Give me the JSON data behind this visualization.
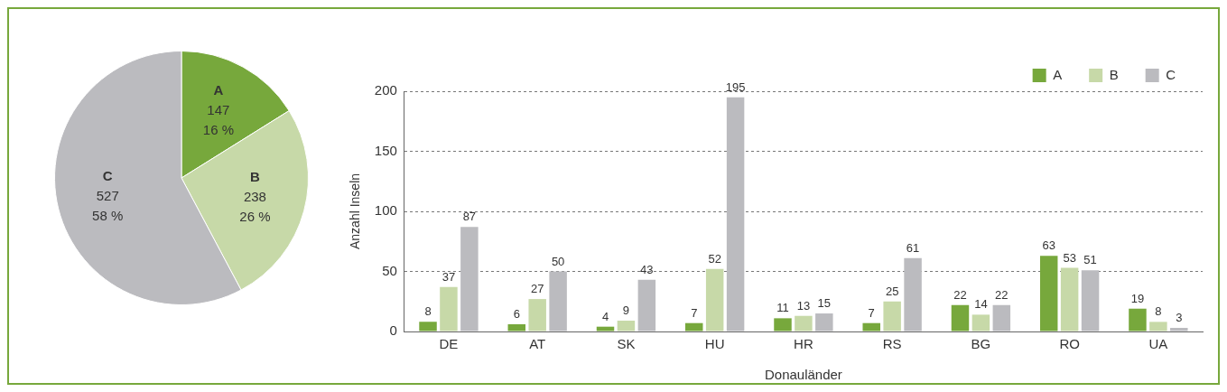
{
  "chart_data": [
    {
      "type": "pie",
      "categories": [
        "A",
        "B",
        "C"
      ],
      "values": [
        147,
        238,
        527
      ],
      "colors": [
        "#77a83c",
        "#c7d9a8",
        "#bbbbbf"
      ],
      "value_labels": [
        "147\n16 %",
        "238\n26 %",
        "527\n58 %"
      ]
    },
    {
      "type": "bar",
      "categories": [
        "DE",
        "AT",
        "SK",
        "HU",
        "HR",
        "RS",
        "BG",
        "RO",
        "UA"
      ],
      "series": [
        {
          "name": "A",
          "color": "#77a83c",
          "values": [
            8,
            6,
            4,
            7,
            11,
            7,
            22,
            63,
            19
          ]
        },
        {
          "name": "B",
          "color": "#c7d9a8",
          "values": [
            37,
            27,
            9,
            52,
            13,
            25,
            14,
            53,
            8
          ]
        },
        {
          "name": "C",
          "color": "#bbbbbf",
          "values": [
            87,
            50,
            43,
            195,
            15,
            61,
            22,
            51,
            3
          ]
        }
      ],
      "ylim": [
        0,
        200
      ],
      "yticks": [
        0,
        50,
        100,
        150,
        200
      ],
      "grid": "y",
      "legend": "top right",
      "data_labels": true,
      "xlabel": "Donauländer",
      "ylabel": "Anzahl Inseln"
    }
  ]
}
